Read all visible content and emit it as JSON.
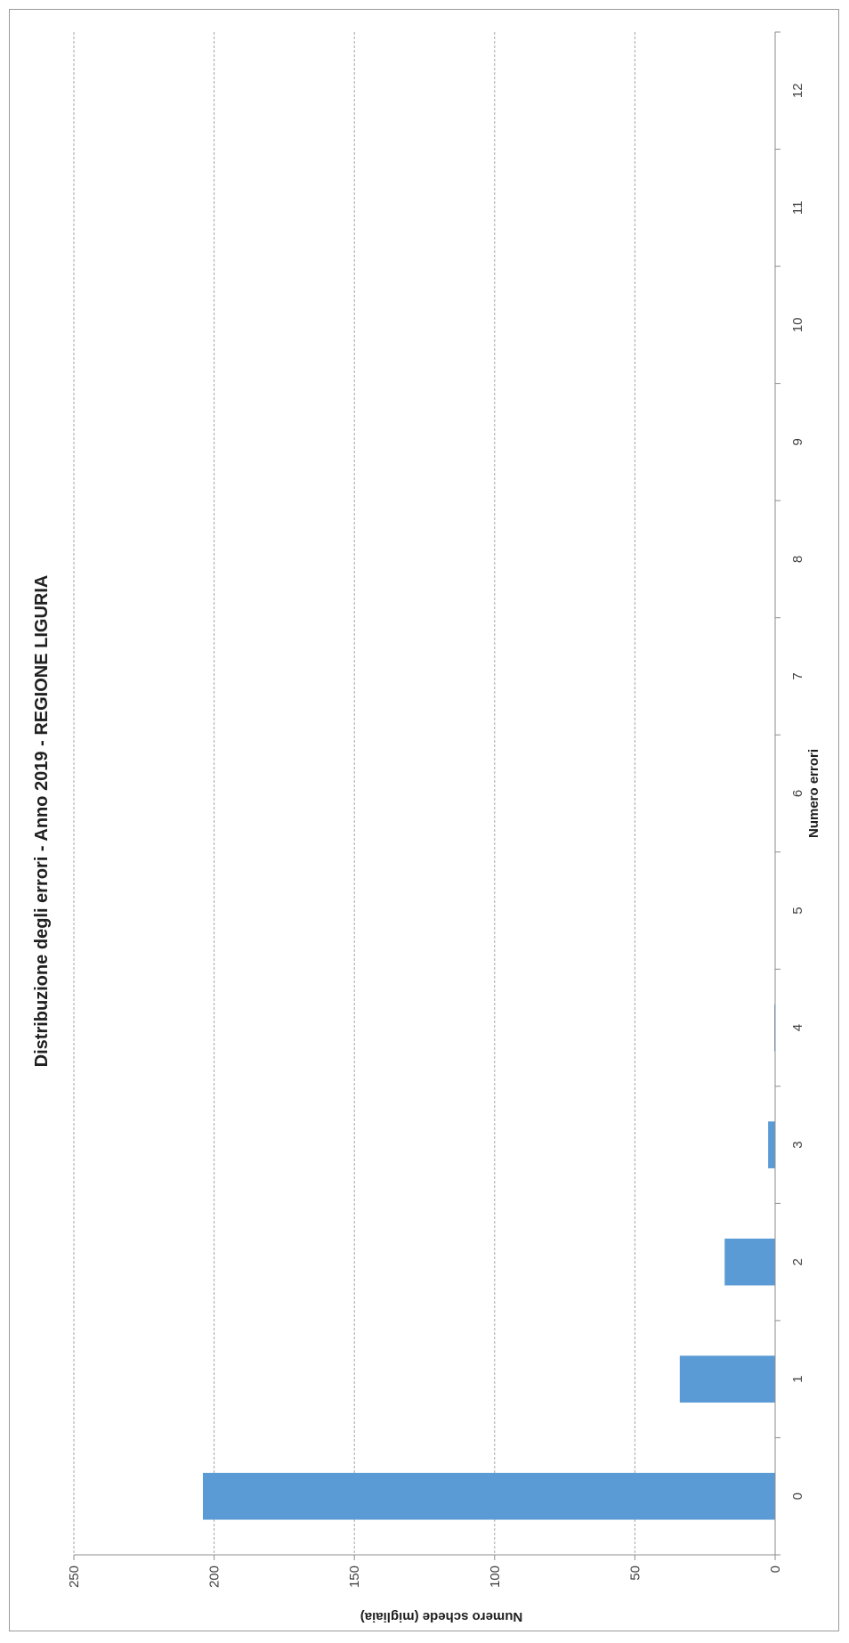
{
  "chart_data": {
    "type": "bar",
    "orientation": "horizontal-rotated",
    "title": "Distribuzione degli errori - Anno 2019 - REGIONE LIGURIA",
    "xlabel": "Numero errori",
    "ylabel": "Numero schede (migliaia)",
    "categories": [
      "0",
      "1",
      "2",
      "3",
      "4",
      "5",
      "6",
      "7",
      "8",
      "9",
      "10",
      "11",
      "12"
    ],
    "values": [
      204,
      34,
      18,
      2.5,
      0.3,
      0,
      0,
      0,
      0,
      0,
      0,
      0,
      0
    ],
    "ylim": [
      0,
      250
    ],
    "yticks": [
      "0",
      "50",
      "100",
      "150",
      "200",
      "250"
    ],
    "grid": true,
    "legend": "none",
    "bar_color": "#5b9bd5"
  }
}
